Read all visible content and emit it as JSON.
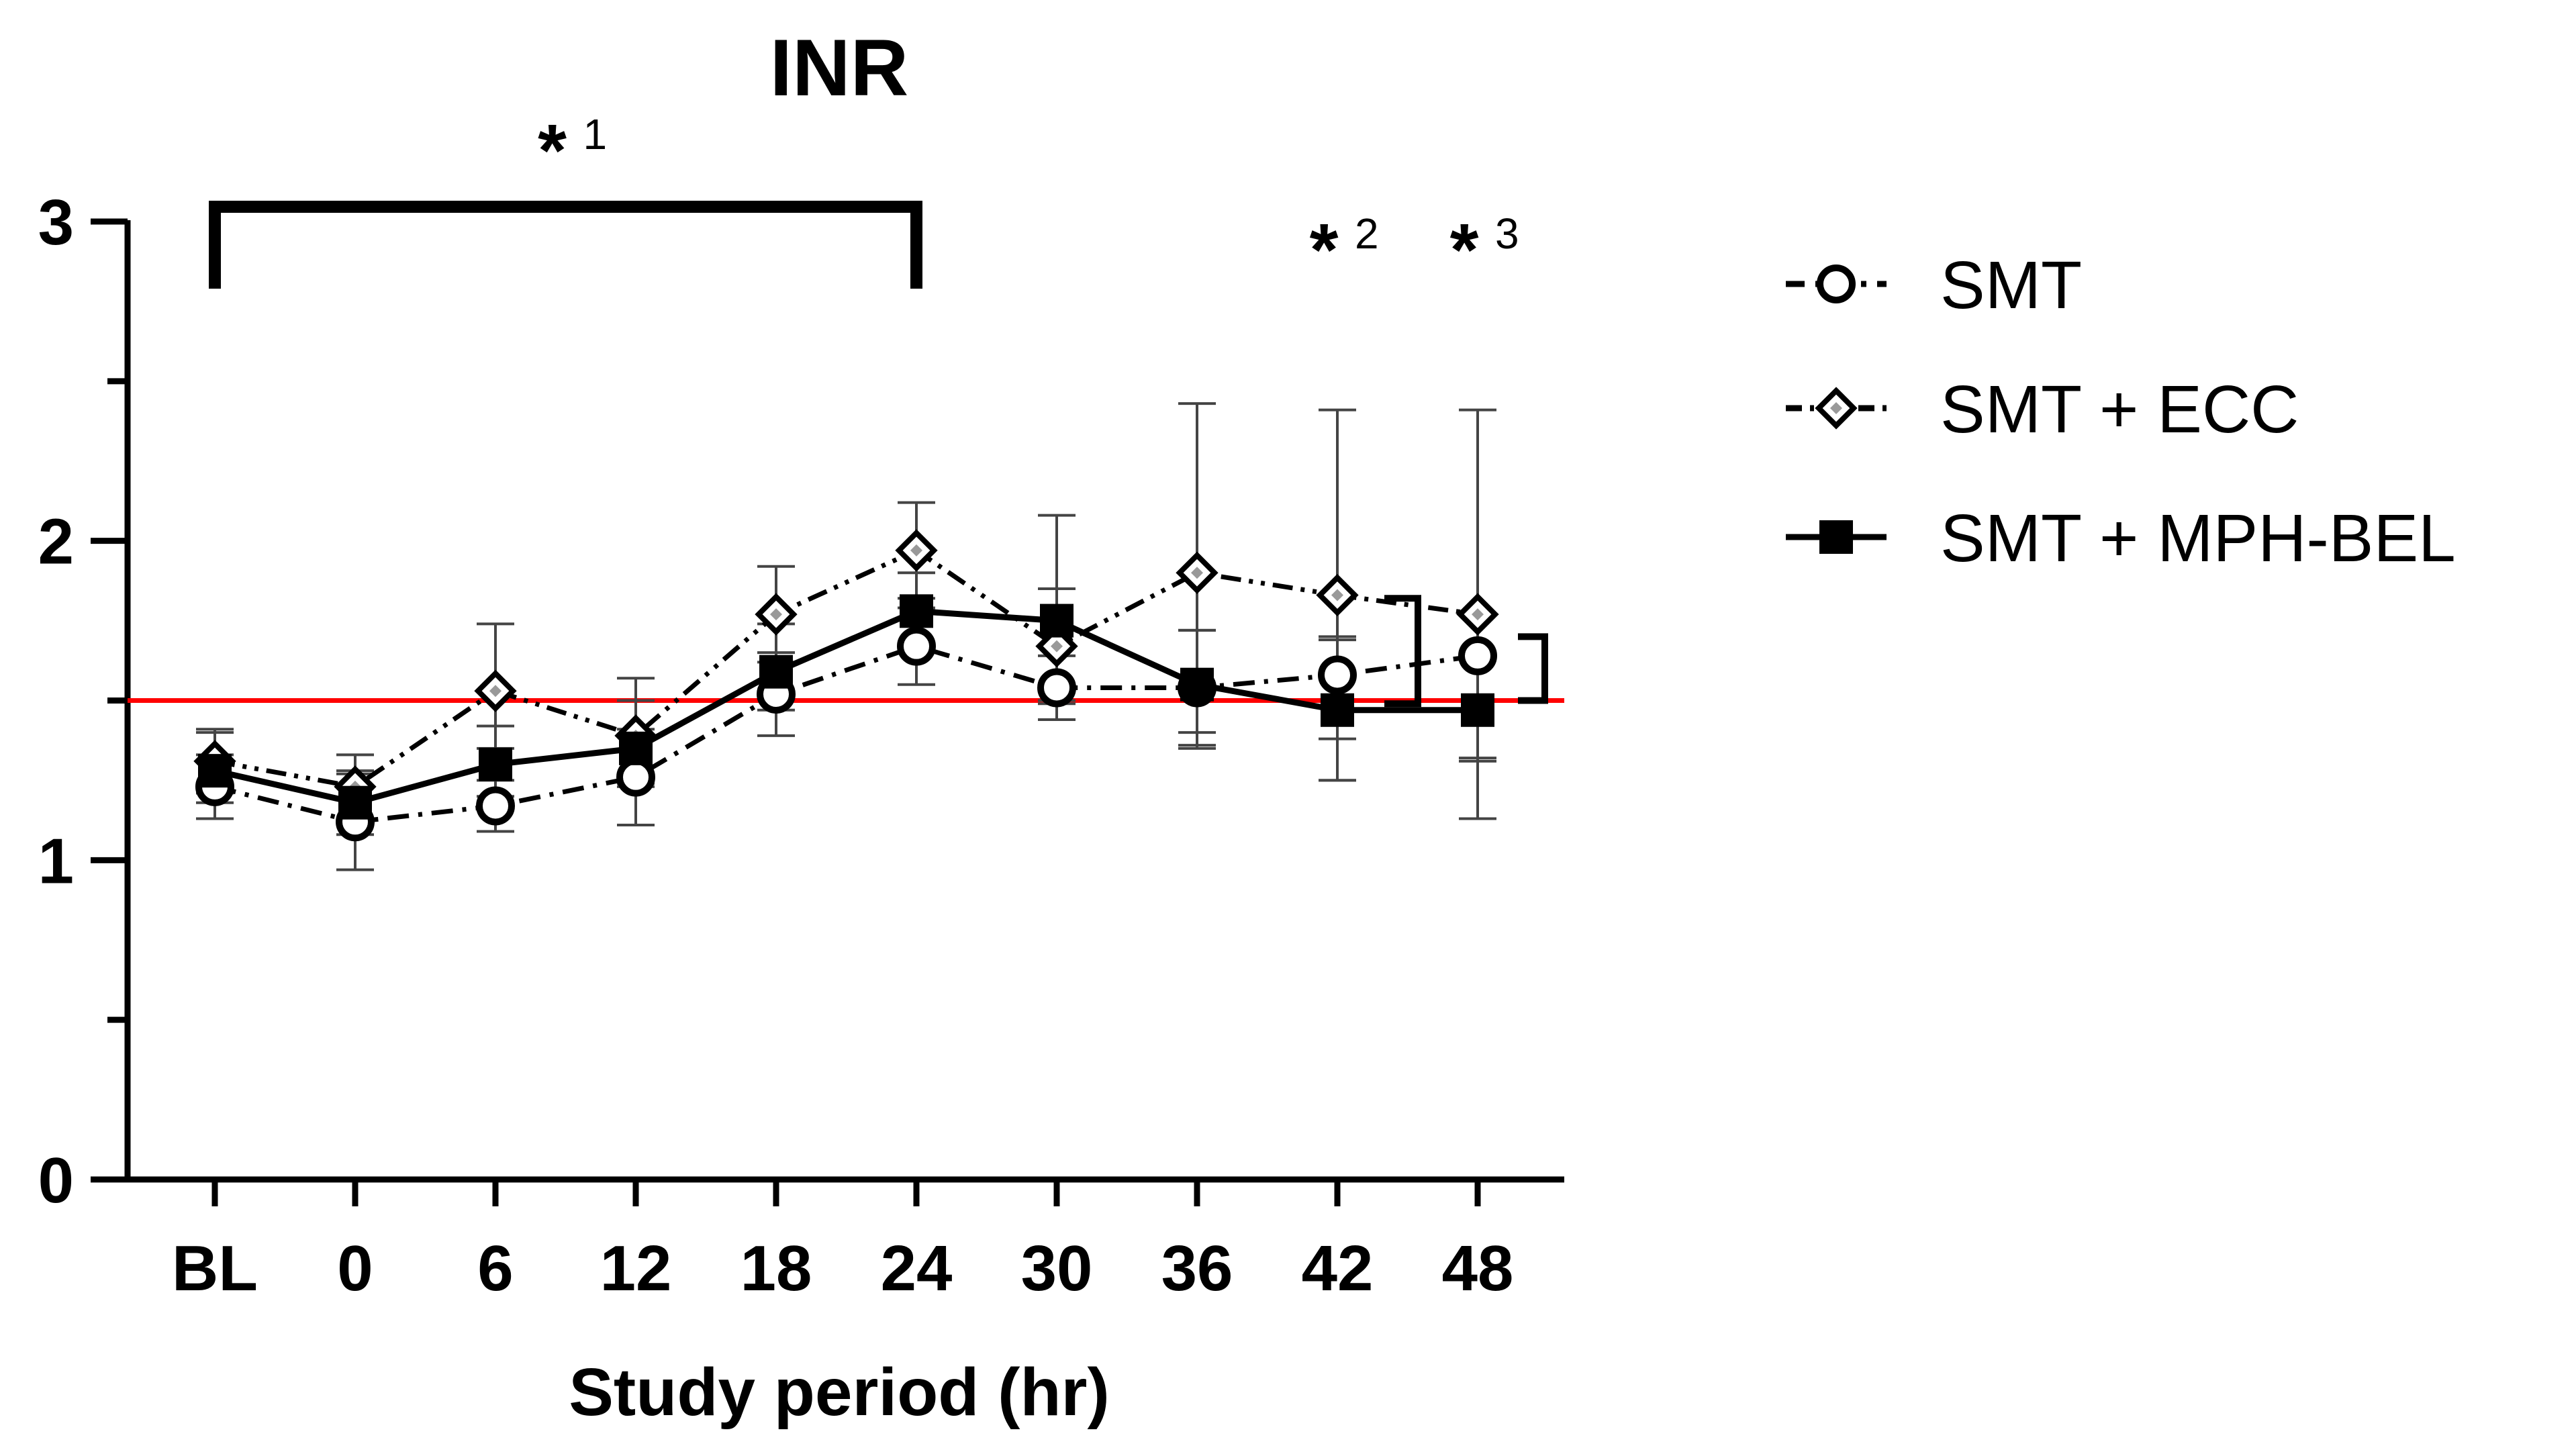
{
  "chart_data": {
    "type": "line",
    "title": "INR",
    "xlabel": "Study period (hr)",
    "ylabel": "",
    "categories": [
      "BL",
      "0",
      "6",
      "12",
      "18",
      "24",
      "30",
      "36",
      "42",
      "48"
    ],
    "ylim": [
      0,
      3
    ],
    "yticks": [
      "0",
      "1",
      "2",
      "3"
    ],
    "reference_line": {
      "y": 1.5,
      "color": "#ff0000"
    },
    "series": [
      {
        "name": "SMT",
        "marker": "open-circle",
        "line_style": "dash-dot",
        "values": [
          1.23,
          1.12,
          1.17,
          1.26,
          1.52,
          1.67,
          1.54,
          1.54,
          1.58,
          1.64
        ],
        "err_low": [
          0.1,
          0.15,
          0.08,
          0.15,
          0.13,
          0.12,
          0.1,
          0.18,
          0.33,
          0.33
        ],
        "err_high": [
          0.1,
          0.15,
          0.08,
          0.15,
          0.13,
          0.12,
          0.1,
          0.18,
          0.12,
          0.13
        ]
      },
      {
        "name": "SMT + ECC",
        "marker": "open-diamond",
        "line_style": "dash-dot-dot",
        "values": [
          1.31,
          1.23,
          1.53,
          1.39,
          1.77,
          1.97,
          1.67,
          1.9,
          1.83,
          1.77
        ],
        "err_low": [
          0.1,
          0.1,
          0.18,
          0.15,
          0.15,
          0.15,
          0.18,
          0.5,
          0.45,
          0.45
        ],
        "err_high": [
          0.1,
          0.1,
          0.21,
          0.18,
          0.15,
          0.15,
          0.18,
          0.53,
          0.58,
          0.64
        ]
      },
      {
        "name": "SMT + MPH-BEL",
        "marker": "filled-square",
        "line_style": "solid",
        "values": [
          1.28,
          1.18,
          1.3,
          1.35,
          1.59,
          1.78,
          1.75,
          1.55,
          1.47,
          1.47
        ],
        "err_low": [
          0.1,
          0.1,
          0.1,
          0.12,
          0.12,
          0.12,
          0.25,
          0.2,
          0.22,
          0.34
        ],
        "err_high": [
          0.12,
          0.1,
          0.12,
          0.15,
          0.15,
          0.12,
          0.33,
          0.17,
          0.22,
          0.16
        ]
      }
    ],
    "annotations": [
      {
        "label": "*",
        "superscript": "1",
        "bracket": [
          "BL",
          "24"
        ]
      },
      {
        "label": "*",
        "superscript": "2",
        "at": "42"
      },
      {
        "label": "*",
        "superscript": "3",
        "at": "48"
      }
    ],
    "legend_position": "right"
  },
  "colors": {
    "axis": "#000000",
    "reference": "#ff0000",
    "error_bar": "#444444"
  }
}
